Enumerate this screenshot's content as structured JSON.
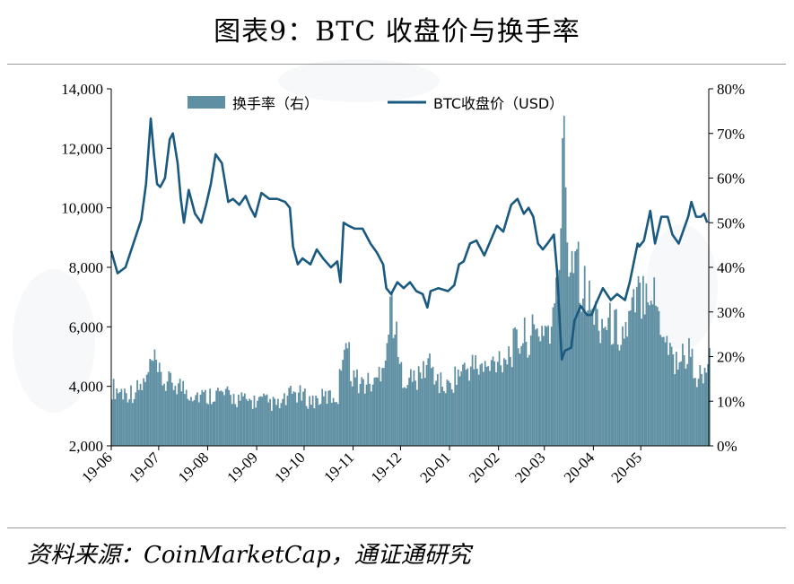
{
  "title": "图表9：BTC 收盘价与换手率",
  "source": "资料来源：CoinMarketCap，通证通研究",
  "colors": {
    "price_line": "#1a5a80",
    "turnover_bar": "#5f8fa2",
    "axis": "#000000"
  },
  "chart_data": {
    "type": "bar+line",
    "categories": [
      "19-06",
      "19-07",
      "19-08",
      "19-09",
      "19-10",
      "19-11",
      "19-12",
      "20-01",
      "20-02",
      "20-03",
      "20-04",
      "20-05"
    ],
    "y_left": {
      "min": 2000,
      "max": 14000,
      "ticks": [
        "14,000",
        "12,000",
        "10,000",
        "8,000",
        "6,000",
        "4,000",
        "2,000"
      ]
    },
    "y_right": {
      "min": 0,
      "max": 80,
      "ticks": [
        "80%",
        "70%",
        "60%",
        "50%",
        "40%",
        "30%",
        "20%",
        "10%",
        "0%"
      ]
    },
    "legend": {
      "position": "top",
      "items": [
        "换手率（右）",
        "BTC收盘价（USD）"
      ]
    },
    "series": [
      {
        "name": "BTC收盘价（USD）",
        "axis": "left",
        "kind": "line",
        "points": [
          [
            "2019-06-01",
            8550
          ],
          [
            "2019-06-05",
            7800
          ],
          [
            "2019-06-10",
            8000
          ],
          [
            "2019-06-15",
            8800
          ],
          [
            "2019-06-20",
            9600
          ],
          [
            "2019-06-23",
            10800
          ],
          [
            "2019-06-26",
            13000
          ],
          [
            "2019-06-28",
            11800
          ],
          [
            "2019-06-30",
            10800
          ],
          [
            "2019-07-02",
            10700
          ],
          [
            "2019-07-05",
            11000
          ],
          [
            "2019-07-08",
            12300
          ],
          [
            "2019-07-10",
            12500
          ],
          [
            "2019-07-13",
            11500
          ],
          [
            "2019-07-15",
            10300
          ],
          [
            "2019-07-17",
            9500
          ],
          [
            "2019-07-20",
            10600
          ],
          [
            "2019-07-24",
            9800
          ],
          [
            "2019-07-28",
            9500
          ],
          [
            "2019-07-31",
            10100
          ],
          [
            "2019-08-03",
            10800
          ],
          [
            "2019-08-06",
            11800
          ],
          [
            "2019-08-10",
            11500
          ],
          [
            "2019-08-14",
            10200
          ],
          [
            "2019-08-17",
            10300
          ],
          [
            "2019-08-21",
            10100
          ],
          [
            "2019-08-25",
            10400
          ],
          [
            "2019-08-28",
            10000
          ],
          [
            "2019-08-31",
            9700
          ],
          [
            "2019-09-04",
            10500
          ],
          [
            "2019-09-09",
            10300
          ],
          [
            "2019-09-14",
            10300
          ],
          [
            "2019-09-19",
            10200
          ],
          [
            "2019-09-22",
            10000
          ],
          [
            "2019-09-24",
            8700
          ],
          [
            "2019-09-27",
            8100
          ],
          [
            "2019-09-30",
            8300
          ],
          [
            "2019-10-05",
            8100
          ],
          [
            "2019-10-09",
            8600
          ],
          [
            "2019-10-13",
            8300
          ],
          [
            "2019-10-18",
            8000
          ],
          [
            "2019-10-22",
            8200
          ],
          [
            "2019-10-24",
            7500
          ],
          [
            "2019-10-26",
            9500
          ],
          [
            "2019-10-29",
            9400
          ],
          [
            "2019-11-02",
            9300
          ],
          [
            "2019-11-07",
            9300
          ],
          [
            "2019-11-12",
            8800
          ],
          [
            "2019-11-16",
            8500
          ],
          [
            "2019-11-20",
            8100
          ],
          [
            "2019-11-22",
            7300
          ],
          [
            "2019-11-25",
            7100
          ],
          [
            "2019-11-29",
            7500
          ],
          [
            "2019-12-03",
            7300
          ],
          [
            "2019-12-07",
            7500
          ],
          [
            "2019-12-11",
            7200
          ],
          [
            "2019-12-15",
            7100
          ],
          [
            "2019-12-18",
            6650
          ],
          [
            "2019-12-20",
            7200
          ],
          [
            "2019-12-25",
            7300
          ],
          [
            "2019-12-31",
            7200
          ],
          [
            "2020-01-04",
            7400
          ],
          [
            "2020-01-07",
            8100
          ],
          [
            "2020-01-10",
            8200
          ],
          [
            "2020-01-14",
            8800
          ],
          [
            "2020-01-18",
            8900
          ],
          [
            "2020-01-23",
            8400
          ],
          [
            "2020-01-27",
            8900
          ],
          [
            "2020-01-31",
            9400
          ],
          [
            "2020-02-04",
            9200
          ],
          [
            "2020-02-09",
            10100
          ],
          [
            "2020-02-13",
            10300
          ],
          [
            "2020-02-17",
            9800
          ],
          [
            "2020-02-20",
            10000
          ],
          [
            "2020-02-23",
            9700
          ],
          [
            "2020-02-26",
            8800
          ],
          [
            "2020-02-29",
            8600
          ],
          [
            "2020-03-03",
            8800
          ],
          [
            "2020-03-07",
            9100
          ],
          [
            "2020-03-09",
            7900
          ],
          [
            "2020-03-12",
            4900
          ],
          [
            "2020-03-14",
            5200
          ],
          [
            "2020-03-18",
            5300
          ],
          [
            "2020-03-20",
            6200
          ],
          [
            "2020-03-24",
            6700
          ],
          [
            "2020-03-28",
            6400
          ],
          [
            "2020-03-31",
            6400
          ],
          [
            "2020-04-02",
            6700
          ],
          [
            "2020-04-07",
            7300
          ],
          [
            "2020-04-12",
            6900
          ],
          [
            "2020-04-16",
            7100
          ],
          [
            "2020-04-21",
            6900
          ],
          [
            "2020-04-24",
            7500
          ],
          [
            "2020-04-29",
            8800
          ],
          [
            "2020-04-30",
            8700
          ],
          [
            "2020-05-03",
            8900
          ],
          [
            "2020-05-07",
            9900
          ],
          [
            "2020-05-10",
            8800
          ],
          [
            "2020-05-14",
            9700
          ],
          [
            "2020-05-18",
            9700
          ],
          [
            "2020-05-21",
            9100
          ],
          [
            "2020-05-25",
            8800
          ],
          [
            "2020-05-31",
            9700
          ],
          [
            "2020-06-02",
            10200
          ],
          [
            "2020-06-05",
            9700
          ],
          [
            "2020-06-08",
            9700
          ],
          [
            "2020-06-10",
            9800
          ],
          [
            "2020-06-12",
            9500
          ]
        ]
      },
      {
        "name": "换手率（右）",
        "axis": "right",
        "kind": "bar",
        "points": [
          [
            "2019-06-01",
            13
          ],
          [
            "2019-06-08",
            12
          ],
          [
            "2019-06-15",
            12
          ],
          [
            "2019-06-22",
            14
          ],
          [
            "2019-06-27",
            19
          ],
          [
            "2019-06-30",
            16
          ],
          [
            "2019-07-05",
            14
          ],
          [
            "2019-07-12",
            14
          ],
          [
            "2019-07-20",
            12
          ],
          [
            "2019-07-31",
            11
          ],
          [
            "2019-08-05",
            12
          ],
          [
            "2019-08-15",
            11
          ],
          [
            "2019-08-25",
            10
          ],
          [
            "2019-08-31",
            10
          ],
          [
            "2019-09-05",
            10
          ],
          [
            "2019-09-15",
            9
          ],
          [
            "2019-09-24",
            12
          ],
          [
            "2019-09-30",
            11
          ],
          [
            "2019-10-05",
            10
          ],
          [
            "2019-10-15",
            11
          ],
          [
            "2019-10-22",
            11
          ],
          [
            "2019-10-26",
            26
          ],
          [
            "2019-10-31",
            16
          ],
          [
            "2019-11-05",
            14
          ],
          [
            "2019-11-15",
            14
          ],
          [
            "2019-11-22",
            23
          ],
          [
            "2019-11-25",
            33
          ],
          [
            "2019-11-30",
            17
          ],
          [
            "2019-12-05",
            15
          ],
          [
            "2019-12-12",
            15
          ],
          [
            "2019-12-18",
            19
          ],
          [
            "2019-12-25",
            14
          ],
          [
            "2019-12-31",
            13
          ],
          [
            "2020-01-05",
            16
          ],
          [
            "2020-01-15",
            18
          ],
          [
            "2020-01-25",
            17
          ],
          [
            "2020-01-31",
            20
          ],
          [
            "2020-02-05",
            20
          ],
          [
            "2020-02-15",
            24
          ],
          [
            "2020-02-25",
            25
          ],
          [
            "2020-02-29",
            27
          ],
          [
            "2020-03-05",
            26
          ],
          [
            "2020-03-09",
            35
          ],
          [
            "2020-03-12",
            60
          ],
          [
            "2020-03-13",
            73
          ],
          [
            "2020-03-16",
            40
          ],
          [
            "2020-03-20",
            48
          ],
          [
            "2020-03-24",
            37
          ],
          [
            "2020-03-31",
            30
          ],
          [
            "2020-04-05",
            28
          ],
          [
            "2020-04-12",
            27
          ],
          [
            "2020-04-20",
            25
          ],
          [
            "2020-04-30",
            34
          ],
          [
            "2020-05-05",
            38
          ],
          [
            "2020-05-10",
            32
          ],
          [
            "2020-05-15",
            26
          ],
          [
            "2020-05-22",
            19
          ],
          [
            "2020-05-31",
            21
          ],
          [
            "2020-06-05",
            16
          ],
          [
            "2020-06-10",
            15
          ],
          [
            "2020-06-12",
            19
          ]
        ]
      }
    ]
  }
}
